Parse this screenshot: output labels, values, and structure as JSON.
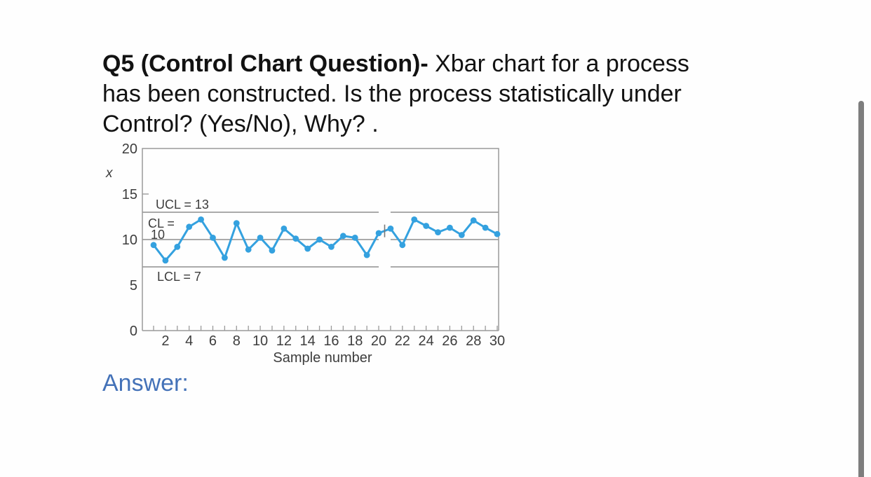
{
  "question": {
    "lines": [
      {
        "bold": "Q5 (Control Chart Question)-",
        "regular": " Xbar chart for a process"
      },
      {
        "bold": "",
        "regular": "has been constructed. Is the process statistically under"
      },
      {
        "bold": "",
        "regular": "Control? (Yes/No), Why? ."
      }
    ]
  },
  "answer_label": "Answer:",
  "ui": {
    "scrollbar_color": "#7e7e7e",
    "answer_color": "#4472b8"
  },
  "chart_data": {
    "type": "line",
    "title": "",
    "xlabel": "Sample number",
    "ylabel": "x",
    "series_name": "xbar",
    "x": [
      1,
      2,
      3,
      4,
      5,
      6,
      7,
      8,
      9,
      10,
      11,
      12,
      13,
      14,
      15,
      16,
      17,
      18,
      19,
      20,
      21,
      22,
      23,
      24,
      25,
      26,
      27,
      28,
      29,
      30
    ],
    "values": [
      9.4,
      7.7,
      9.2,
      11.4,
      12.2,
      10.2,
      8.0,
      11.8,
      8.9,
      10.2,
      8.8,
      11.2,
      10.1,
      9.0,
      10.0,
      9.2,
      10.4,
      10.2,
      8.3,
      10.7,
      11.2,
      9.4,
      12.2,
      11.5,
      10.8,
      11.3,
      10.5,
      12.1,
      11.3,
      10.6
    ],
    "ucl": {
      "value": 13,
      "label": "UCL = 13"
    },
    "cl": {
      "value": 10,
      "label_line1": "CL =",
      "label_line2": "10"
    },
    "lcl": {
      "value": 7,
      "label": "LCL = 7"
    },
    "ylim": [
      0,
      20
    ],
    "yticks": [
      0,
      5,
      10,
      15,
      20
    ],
    "xticks": [
      2,
      4,
      6,
      8,
      10,
      12,
      14,
      16,
      18,
      20,
      22,
      24,
      26,
      28,
      30
    ],
    "break_between_samples": [
      20,
      21
    ],
    "grid": false,
    "legend": "none",
    "line_color": "#34a1df",
    "limit_line_color": "#8e8e8e",
    "axis_color": "#9a9a9a",
    "label_color": "#3d3d3d"
  }
}
